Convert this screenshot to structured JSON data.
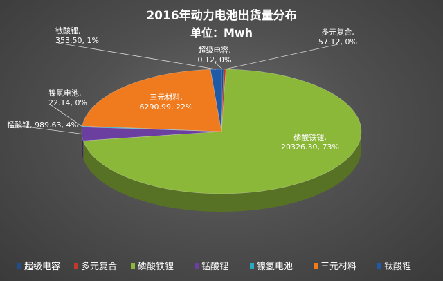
{
  "chart_data": {
    "type": "pie",
    "title": "2016年动力电池出货量分布",
    "subtitle": "单位：Mwh",
    "slices": [
      {
        "name": "超级电容",
        "value": 0.12,
        "percent_label": "0%",
        "value_label": "0.12",
        "color": "#1f4e8c"
      },
      {
        "name": "多元复合",
        "value": 57.12,
        "percent_label": "0%",
        "value_label": "57.12",
        "color": "#c0392b"
      },
      {
        "name": "磷酸铁锂",
        "value": 20326.3,
        "percent_label": "73%",
        "value_label": "20326.30",
        "color": "#8cb83a"
      },
      {
        "name": "锰酸锂",
        "value": 989.63,
        "percent_label": "4%",
        "value_label": "989.63",
        "color": "#6a3fa0"
      },
      {
        "name": "镍氢电池",
        "value": 22.14,
        "percent_label": "0%",
        "value_label": "22.14",
        "color": "#2aa7c4"
      },
      {
        "name": "三元材料",
        "value": 6290.99,
        "percent_label": "22%",
        "value_label": "6290.99",
        "color": "#f07b1f"
      },
      {
        "name": "钛酸锂",
        "value": 353.5,
        "percent_label": "1%",
        "value_label": "353.50",
        "color": "#1e5aa8"
      }
    ],
    "legend_position": "bottom"
  }
}
